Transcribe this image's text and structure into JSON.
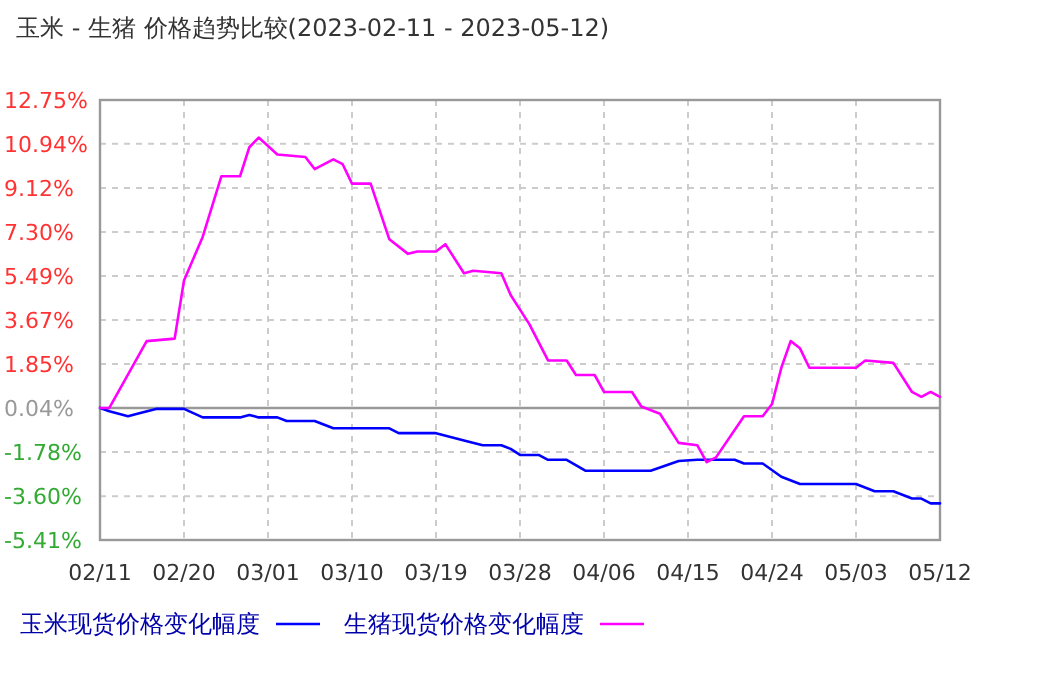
{
  "chart_data": {
    "type": "line",
    "title": "玉米 - 生猪 价格趋势比较(2023-02-11 - 2023-05-12)",
    "xlim": [
      "2023-02-11",
      "2023-05-12"
    ],
    "xticks": [
      {
        "value": "2023-02-11",
        "label": "02/11"
      },
      {
        "value": "2023-02-20",
        "label": "02/20"
      },
      {
        "value": "2023-03-01",
        "label": "03/01"
      },
      {
        "value": "2023-03-10",
        "label": "03/10"
      },
      {
        "value": "2023-03-19",
        "label": "03/19"
      },
      {
        "value": "2023-03-28",
        "label": "03/28"
      },
      {
        "value": "2023-04-06",
        "label": "04/06"
      },
      {
        "value": "2023-04-15",
        "label": "04/15"
      },
      {
        "value": "2023-04-24",
        "label": "04/24"
      },
      {
        "value": "2023-05-03",
        "label": "05/03"
      },
      {
        "value": "2023-05-12",
        "label": "05/12"
      }
    ],
    "ylim": [
      -5.41,
      12.75
    ],
    "yticks": [
      {
        "value": -5.41,
        "label": "-5.41%"
      },
      {
        "value": -3.6,
        "label": "-3.60%"
      },
      {
        "value": -1.78,
        "label": "-1.78%"
      },
      {
        "value": 0.04,
        "label": "0.04%"
      },
      {
        "value": 1.85,
        "label": "1.85%"
      },
      {
        "value": 3.67,
        "label": "3.67%"
      },
      {
        "value": 5.49,
        "label": "5.49%"
      },
      {
        "value": 7.3,
        "label": "7.30%"
      },
      {
        "value": 9.12,
        "label": "9.12%"
      },
      {
        "value": 10.94,
        "label": "10.94%"
      },
      {
        "value": 12.75,
        "label": "12.75%"
      }
    ],
    "grid": true,
    "legend": "bottom",
    "line_style": "solid",
    "ref_lines": [
      {
        "axis": "y",
        "value": 0.04,
        "color": "#999999"
      }
    ],
    "series": [
      {
        "name": "玉米现货价格变化幅度",
        "color": "#0000ff",
        "x": [
          "2023-02-11",
          "2023-02-12",
          "2023-02-14",
          "2023-02-15",
          "2023-02-17",
          "2023-02-20",
          "2023-02-22",
          "2023-02-26",
          "2023-02-27",
          "2023-02-28",
          "2023-03-02",
          "2023-03-03",
          "2023-03-06",
          "2023-03-08",
          "2023-03-14",
          "2023-03-15",
          "2023-03-19",
          "2023-03-22",
          "2023-03-24",
          "2023-03-26",
          "2023-03-27",
          "2023-03-28",
          "2023-03-30",
          "2023-03-31",
          "2023-04-02",
          "2023-04-04",
          "2023-04-11",
          "2023-04-14",
          "2023-04-16",
          "2023-04-20",
          "2023-04-21",
          "2023-04-23",
          "2023-04-25",
          "2023-04-27",
          "2023-05-03",
          "2023-05-05",
          "2023-05-07",
          "2023-05-09",
          "2023-05-10",
          "2023-05-11",
          "2023-05-12"
        ],
        "values": [
          0.04,
          -0.1,
          -0.3,
          -0.2,
          0.0,
          0.0,
          -0.35,
          -0.35,
          -0.25,
          -0.35,
          -0.35,
          -0.5,
          -0.5,
          -0.8,
          -0.8,
          -1.0,
          -1.0,
          -1.3,
          -1.5,
          -1.5,
          -1.65,
          -1.9,
          -1.9,
          -2.1,
          -2.1,
          -2.55,
          -2.55,
          -2.15,
          -2.1,
          -2.1,
          -2.25,
          -2.25,
          -2.8,
          -3.1,
          -3.1,
          -3.4,
          -3.4,
          -3.7,
          -3.7,
          -3.9,
          -3.9
        ]
      },
      {
        "name": "生猪现货价格变化幅度",
        "color": "#ff00ff",
        "x": [
          "2023-02-11",
          "2023-02-12",
          "2023-02-16",
          "2023-02-19",
          "2023-02-20",
          "2023-02-22",
          "2023-02-24",
          "2023-02-26",
          "2023-02-27",
          "2023-02-28",
          "2023-03-02",
          "2023-03-05",
          "2023-03-06",
          "2023-03-08",
          "2023-03-09",
          "2023-03-10",
          "2023-03-12",
          "2023-03-14",
          "2023-03-16",
          "2023-03-17",
          "2023-03-19",
          "2023-03-20",
          "2023-03-22",
          "2023-03-23",
          "2023-03-26",
          "2023-03-27",
          "2023-03-28",
          "2023-03-29",
          "2023-03-31",
          "2023-04-02",
          "2023-04-03",
          "2023-04-05",
          "2023-04-06",
          "2023-04-09",
          "2023-04-10",
          "2023-04-12",
          "2023-04-14",
          "2023-04-16",
          "2023-04-17",
          "2023-04-18",
          "2023-04-21",
          "2023-04-23",
          "2023-04-24",
          "2023-04-25",
          "2023-04-26",
          "2023-04-27",
          "2023-04-28",
          "2023-05-03",
          "2023-05-04",
          "2023-05-07",
          "2023-05-09",
          "2023-05-10",
          "2023-05-11",
          "2023-05-12"
        ],
        "values": [
          0.04,
          0.04,
          2.8,
          2.9,
          5.3,
          7.1,
          9.6,
          9.6,
          10.8,
          11.2,
          10.5,
          10.4,
          9.9,
          10.3,
          10.1,
          9.3,
          9.3,
          7.0,
          6.4,
          6.5,
          6.5,
          6.8,
          5.6,
          5.7,
          5.6,
          4.7,
          4.1,
          3.5,
          2.0,
          2.0,
          1.4,
          1.4,
          0.7,
          0.7,
          0.1,
          -0.2,
          -1.4,
          -1.5,
          -2.2,
          -2.0,
          -0.3,
          -0.3,
          0.2,
          1.7,
          2.8,
          2.5,
          1.7,
          1.7,
          2.0,
          1.9,
          0.7,
          0.5,
          0.7,
          0.5
        ]
      }
    ]
  }
}
